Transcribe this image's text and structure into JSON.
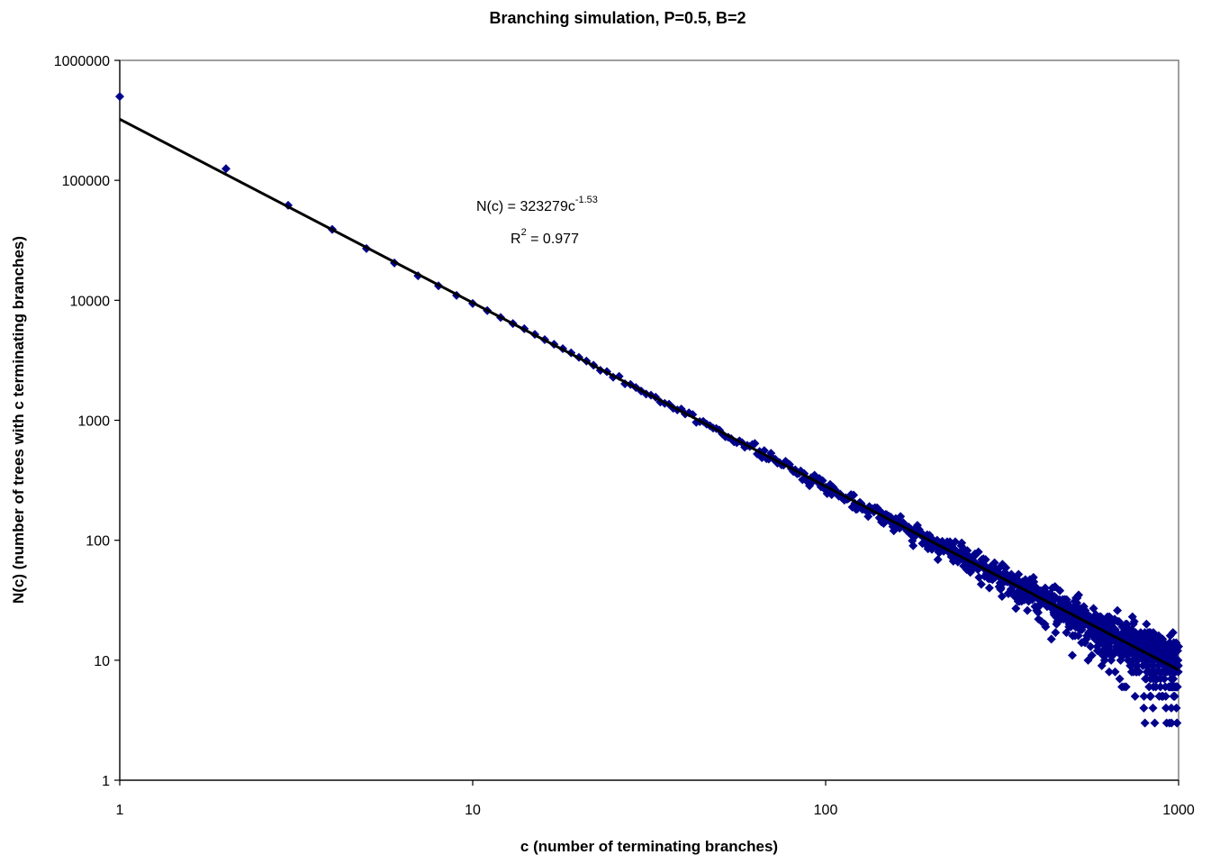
{
  "chart_data": {
    "type": "scatter",
    "title": "Branching simulation, P=0.5, B=2",
    "xlabel": "c (number of terminating branches)",
    "ylabel": "N(c) (number of trees with c terminating branches)",
    "x_scale": "log",
    "y_scale": "log",
    "xlim": [
      1,
      1000
    ],
    "ylim": [
      1,
      1000000
    ],
    "x_ticks": [
      "1",
      "10",
      "100",
      "1000"
    ],
    "y_ticks": [
      "1",
      "10",
      "100",
      "1000",
      "10000",
      "100000",
      "1000000"
    ],
    "grid": false,
    "legend": "none",
    "colors": {
      "points": "#00008B",
      "trendline": "#000000",
      "frame": "#808080"
    },
    "trendline": {
      "type": "power",
      "coefficient": 323279,
      "exponent": -1.53,
      "equation_prefix": "N(c) = 323279c",
      "equation_exponent": "-1.53",
      "r2_prefix": "R",
      "r2_exponent": "2",
      "r2_suffix": " = 0.977"
    },
    "series": [
      {
        "points": [
          [
            1,
            500000
          ],
          [
            2,
            125000
          ],
          [
            3,
            62000
          ],
          [
            4,
            39000
          ],
          [
            5,
            27000
          ],
          [
            6,
            20500
          ],
          [
            7,
            16000
          ],
          [
            8,
            13200
          ],
          [
            9,
            11000
          ],
          [
            10,
            9400
          ],
          [
            11,
            8200
          ],
          [
            12,
            7200
          ],
          [
            13,
            6400
          ],
          [
            14,
            5800
          ],
          [
            15,
            5200
          ],
          [
            16,
            4700
          ],
          [
            17,
            4300
          ],
          [
            18,
            3950
          ],
          [
            19,
            3650
          ],
          [
            20,
            3350
          ]
        ],
        "cloud": {
          "x_from": 21,
          "x_to": 1000,
          "coefficient": 323279,
          "exponent": -1.53,
          "min_value": 3,
          "seed": 7
        }
      }
    ]
  }
}
